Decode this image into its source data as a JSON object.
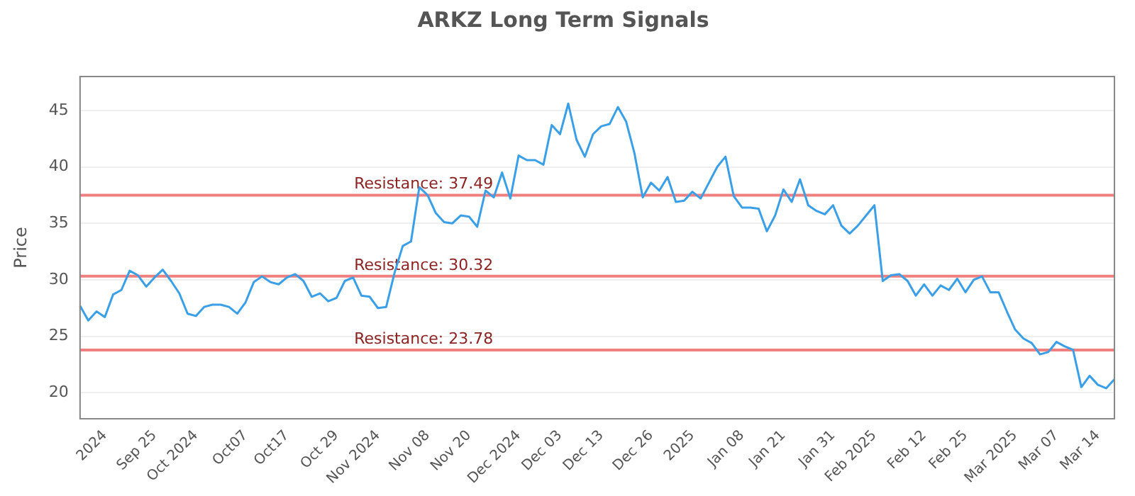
{
  "chart_data": {
    "type": "line",
    "title": "ARKZ Long Term Signals",
    "ylabel": "Price",
    "categories": [
      null,
      null,
      null,
      "2024",
      null,
      null,
      null,
      null,
      null,
      "Sep 25",
      null,
      null,
      null,
      null,
      "Oct 2024",
      null,
      null,
      null,
      null,
      null,
      "Oct07",
      null,
      null,
      null,
      null,
      "Oct17",
      null,
      null,
      null,
      null,
      null,
      "Oct 29",
      null,
      null,
      null,
      null,
      "Nov 2024",
      null,
      null,
      null,
      null,
      null,
      "Nov 08",
      null,
      null,
      null,
      null,
      "Nov 20",
      null,
      null,
      null,
      null,
      null,
      "Dec 2024",
      null,
      null,
      null,
      null,
      "Dec 03",
      null,
      null,
      null,
      null,
      "Dec 13",
      null,
      null,
      null,
      null,
      null,
      "Dec 26",
      null,
      null,
      null,
      null,
      "2025",
      null,
      null,
      null,
      null,
      null,
      "Jan 08",
      null,
      null,
      null,
      null,
      "Jan 21",
      null,
      null,
      null,
      null,
      null,
      "Jan 31",
      null,
      null,
      null,
      null,
      "Feb 2025",
      null,
      null,
      null,
      null,
      null,
      "Feb 12",
      null,
      null,
      null,
      null,
      "Feb 25",
      null,
      null,
      null,
      null,
      null,
      "Mar 2025",
      null,
      null,
      null,
      null,
      "Mar 07",
      null,
      null,
      null,
      null,
      "Mar 14",
      null,
      null
    ],
    "series": [
      {
        "color": "#3a9fe6",
        "values": [
          27.7,
          26.4,
          27.2,
          26.7,
          28.7,
          29.1,
          30.8,
          30.4,
          29.4,
          30.2,
          30.9,
          29.9,
          28.8,
          27.0,
          26.8,
          27.6,
          27.8,
          27.8,
          27.6,
          27.0,
          28.0,
          29.8,
          30.3,
          29.8,
          29.6,
          30.2,
          30.5,
          29.9,
          28.5,
          28.8,
          28.1,
          28.4,
          29.9,
          30.2,
          28.6,
          28.5,
          27.5,
          27.6,
          30.6,
          33.0,
          33.4,
          38.2,
          37.5,
          35.9,
          35.1,
          35.0,
          35.7,
          35.6,
          34.7,
          37.9,
          37.3,
          39.5,
          37.2,
          41.0,
          40.6,
          40.6,
          40.2,
          43.7,
          42.9,
          45.6,
          42.4,
          40.9,
          42.9,
          43.6,
          43.8,
          45.3,
          44.0,
          41.2,
          37.3,
          38.6,
          37.9,
          39.1,
          36.9,
          37.0,
          37.8,
          37.2,
          38.6,
          40.0,
          40.9,
          37.4,
          36.4,
          36.4,
          36.3,
          34.3,
          35.7,
          38.0,
          36.9,
          38.9,
          36.6,
          36.1,
          35.8,
          36.6,
          34.8,
          34.1,
          34.8,
          35.7,
          36.6,
          29.9,
          30.4,
          30.5,
          29.9,
          28.6,
          29.6,
          28.6,
          29.5,
          29.1,
          30.1,
          28.9,
          30.0,
          30.3,
          28.9,
          28.9,
          27.2,
          25.6,
          24.8,
          24.4,
          23.4,
          23.6,
          24.5,
          24.1,
          23.8,
          20.5,
          21.5,
          20.7,
          20.4,
          21.2
        ]
      }
    ],
    "ylim": [
      17.7,
      48
    ],
    "yticks": [
      20,
      25,
      30,
      35,
      40,
      45
    ],
    "grid": "y",
    "legend": false,
    "marker": "none",
    "line_style": "solid",
    "ref_lines": [
      {
        "axis": "y",
        "value": 37.49,
        "label": "Resistance: 37.49",
        "color": "#f08080"
      },
      {
        "axis": "y",
        "value": 30.32,
        "label": "Resistance: 30.32",
        "color": "#f08080"
      },
      {
        "axis": "y",
        "value": 23.78,
        "label": "Resistance: 23.78",
        "color": "#f08080"
      }
    ]
  }
}
